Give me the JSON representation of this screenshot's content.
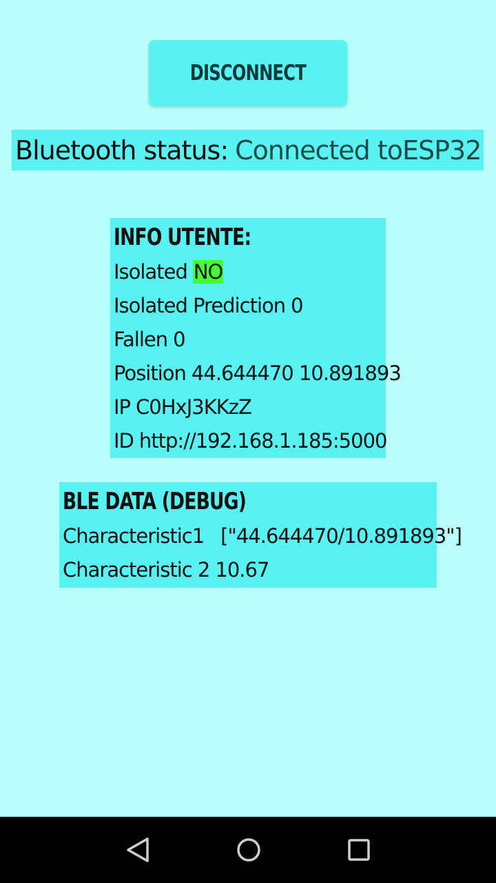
{
  "disconnect_button": {
    "label": "DISCONNECT"
  },
  "bluetooth_status": {
    "label": "Bluetooth status:",
    "value": "Connected toESP32"
  },
  "info_utente": {
    "title": "INFO UTENTE:",
    "isolated": {
      "label": "Isolated",
      "value": "NO"
    },
    "isolated_prediction": {
      "label": "Isolated Prediction",
      "value": "0"
    },
    "fallen": {
      "label": "Fallen",
      "value": "0"
    },
    "position": {
      "label": "Position",
      "value": "44.644470 10.891893"
    },
    "ip": {
      "label": "IP",
      "value": "C0HxJ3KKzZ"
    },
    "id": {
      "label": "ID",
      "value": "http://192.168.1.185:5000"
    }
  },
  "ble_data": {
    "title": "BLE DATA (DEBUG)",
    "characteristic1": {
      "label": "Characteristic1",
      "value": "[\"44.644470/10.891893\"]"
    },
    "characteristic2": {
      "label": "Characteristic 2",
      "value": "10.67"
    }
  },
  "nav": {
    "icons": [
      "back-icon",
      "home-icon",
      "recents-icon"
    ]
  },
  "colors": {
    "background": "#b8fffb",
    "card": "#58f2f2",
    "highlight": "#44ff33",
    "navbar": "#000000"
  }
}
